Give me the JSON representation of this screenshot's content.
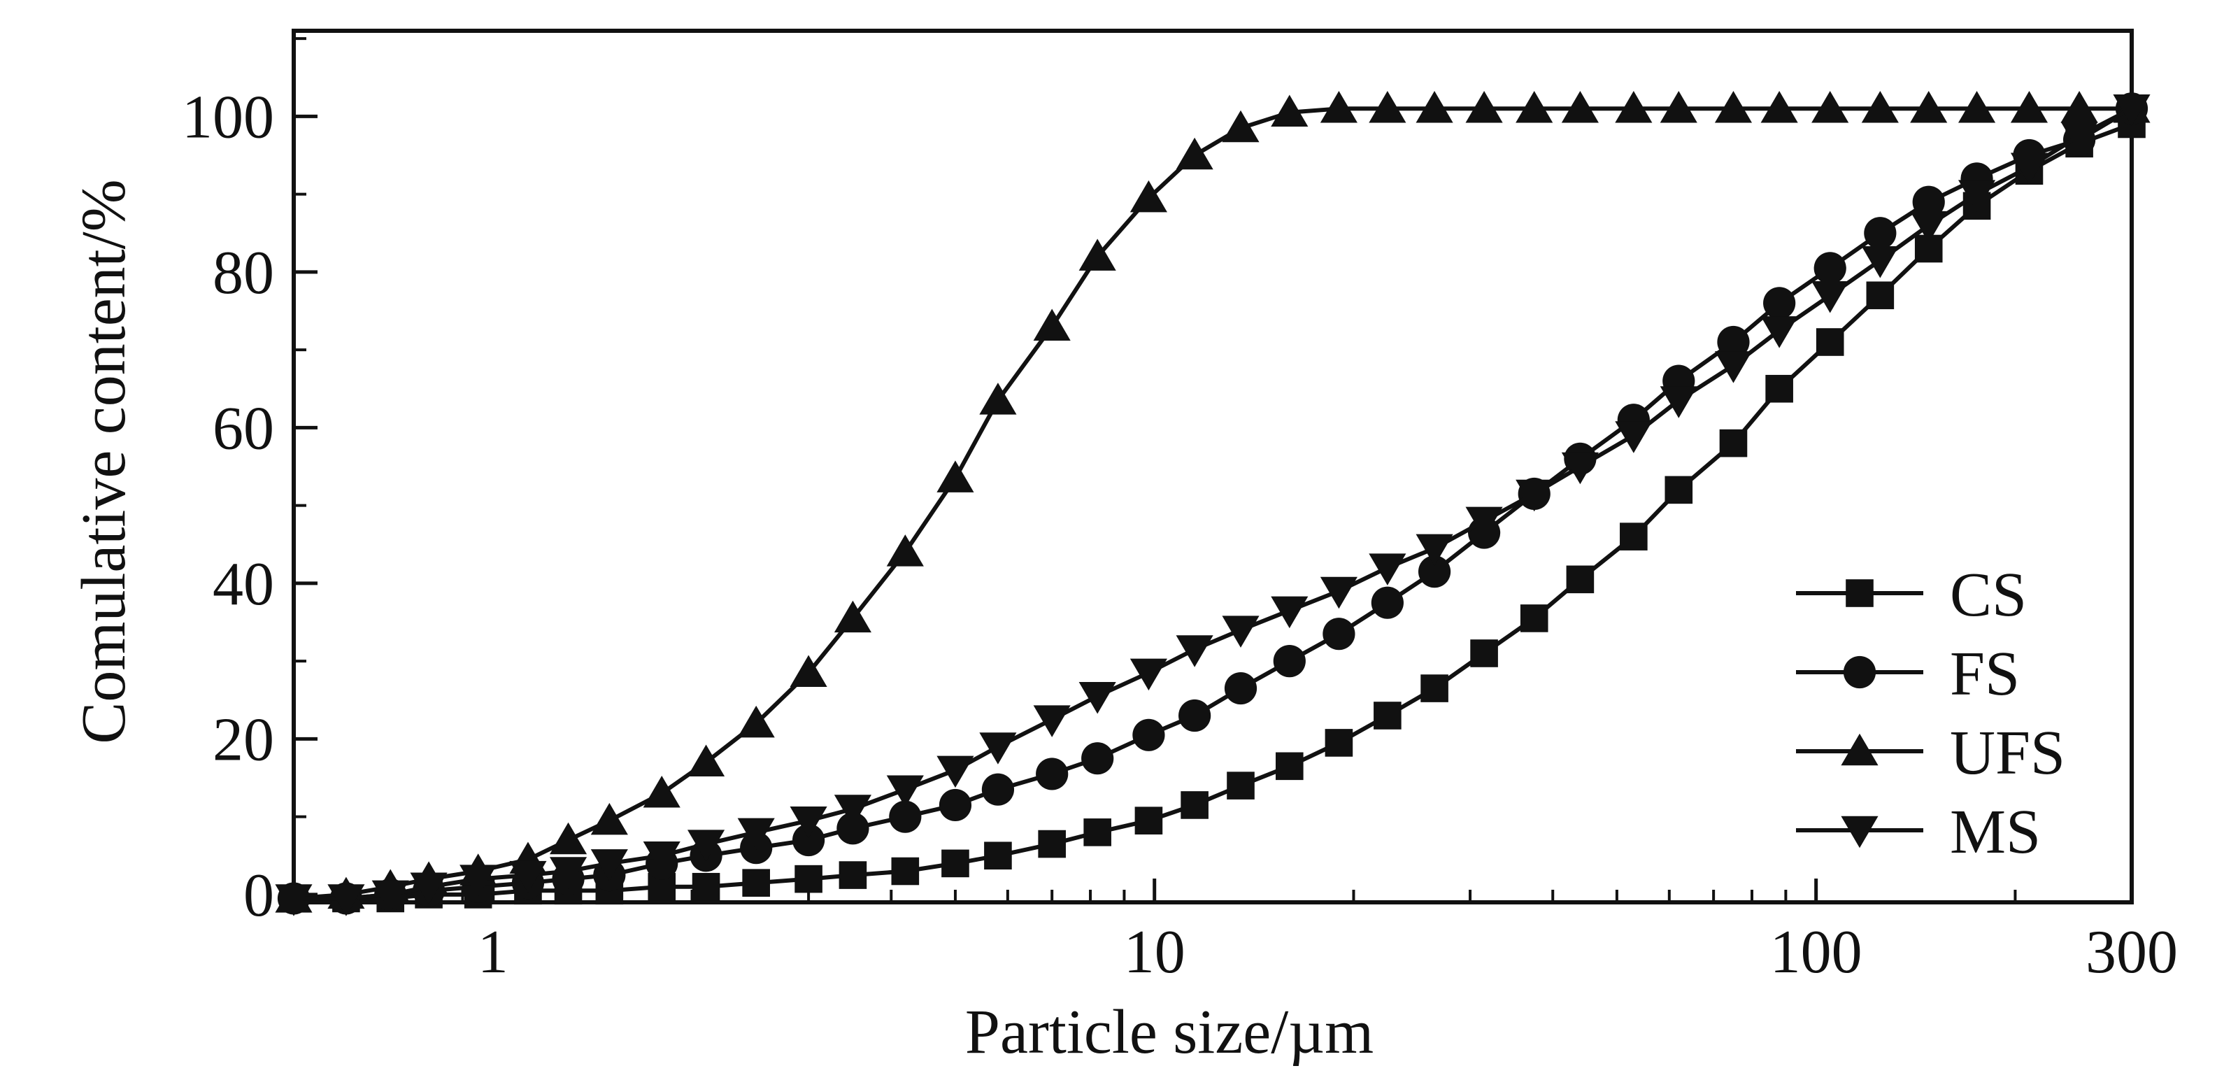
{
  "chart_data": {
    "type": "line",
    "title": "",
    "xlabel": "Particle size/µm",
    "ylabel": "Comulative content/%",
    "x_scale": "log",
    "xlim": [
      0.5,
      300
    ],
    "ylim": [
      -1,
      111
    ],
    "x_ticks": [
      1,
      10,
      100,
      300
    ],
    "x_tick_labels": [
      "1",
      "10",
      "100",
      "300"
    ],
    "y_ticks": [
      0,
      20,
      40,
      60,
      80,
      100
    ],
    "y_tick_labels": [
      "0",
      "20",
      "40",
      "60",
      "80",
      "100"
    ],
    "grid": false,
    "legend_position": "bottom-right",
    "colors": {
      "line": "#111111",
      "axis": "#111111"
    },
    "x": [
      0.5,
      0.6,
      0.7,
      0.8,
      0.95,
      1.13,
      1.3,
      1.5,
      1.8,
      2.1,
      2.5,
      3.0,
      3.5,
      4.2,
      5.0,
      5.8,
      7.0,
      8.2,
      9.8,
      11.5,
      13.5,
      16.0,
      19.0,
      22.5,
      26.5,
      31.5,
      37.5,
      44.0,
      53.0,
      62.0,
      75.0,
      88.0,
      105.0,
      125.0,
      148.0,
      175.0,
      210.0,
      250.0,
      300.0
    ],
    "series": [
      {
        "name": "CS",
        "marker": "square",
        "values": [
          -0.5,
          -0.5,
          -0.5,
          0,
          0,
          0.5,
          0.5,
          0.5,
          1,
          1,
          1.5,
          2,
          2.5,
          3,
          4,
          5,
          6.5,
          8,
          9.5,
          11.5,
          14,
          16.5,
          19.5,
          23,
          26.5,
          31,
          35.5,
          40.5,
          46,
          52,
          58,
          65,
          71,
          77,
          83,
          88.5,
          93,
          96.5,
          99
        ]
      },
      {
        "name": "FS",
        "marker": "circle",
        "values": [
          -0.5,
          -0.5,
          0,
          0.5,
          1,
          1.5,
          2,
          2.5,
          4,
          5,
          6,
          7,
          8.5,
          10,
          11.5,
          13.5,
          15.5,
          17.5,
          20.5,
          23,
          26.5,
          30,
          33.5,
          37.5,
          41.5,
          46.5,
          51.5,
          56,
          61,
          66,
          71,
          76,
          80.5,
          85,
          89,
          92,
          95,
          97,
          101
        ]
      },
      {
        "name": "UFS",
        "marker": "triangle-up",
        "values": [
          -0.5,
          0,
          1,
          2,
          3,
          4.5,
          7,
          9.5,
          13,
          17,
          22,
          28.5,
          35.5,
          44,
          53.5,
          63.5,
          73,
          82,
          89.5,
          95,
          98.5,
          100.5,
          101,
          101,
          101,
          101,
          101,
          101,
          101,
          101,
          101,
          101,
          101,
          101,
          101,
          101,
          101,
          101,
          101
        ]
      },
      {
        "name": "MS",
        "marker": "triangle-down",
        "values": [
          -0.5,
          -0.5,
          0,
          1,
          2,
          2.5,
          3,
          4,
          5,
          6.5,
          8,
          9.5,
          11,
          13.5,
          16,
          19,
          22.5,
          25.5,
          28.5,
          31.5,
          34,
          36.5,
          39,
          42,
          44.5,
          48,
          51.5,
          55,
          59,
          63.5,
          68,
          72.5,
          77,
          81.5,
          86,
          90,
          93.5,
          97.5,
          101
        ]
      }
    ]
  }
}
